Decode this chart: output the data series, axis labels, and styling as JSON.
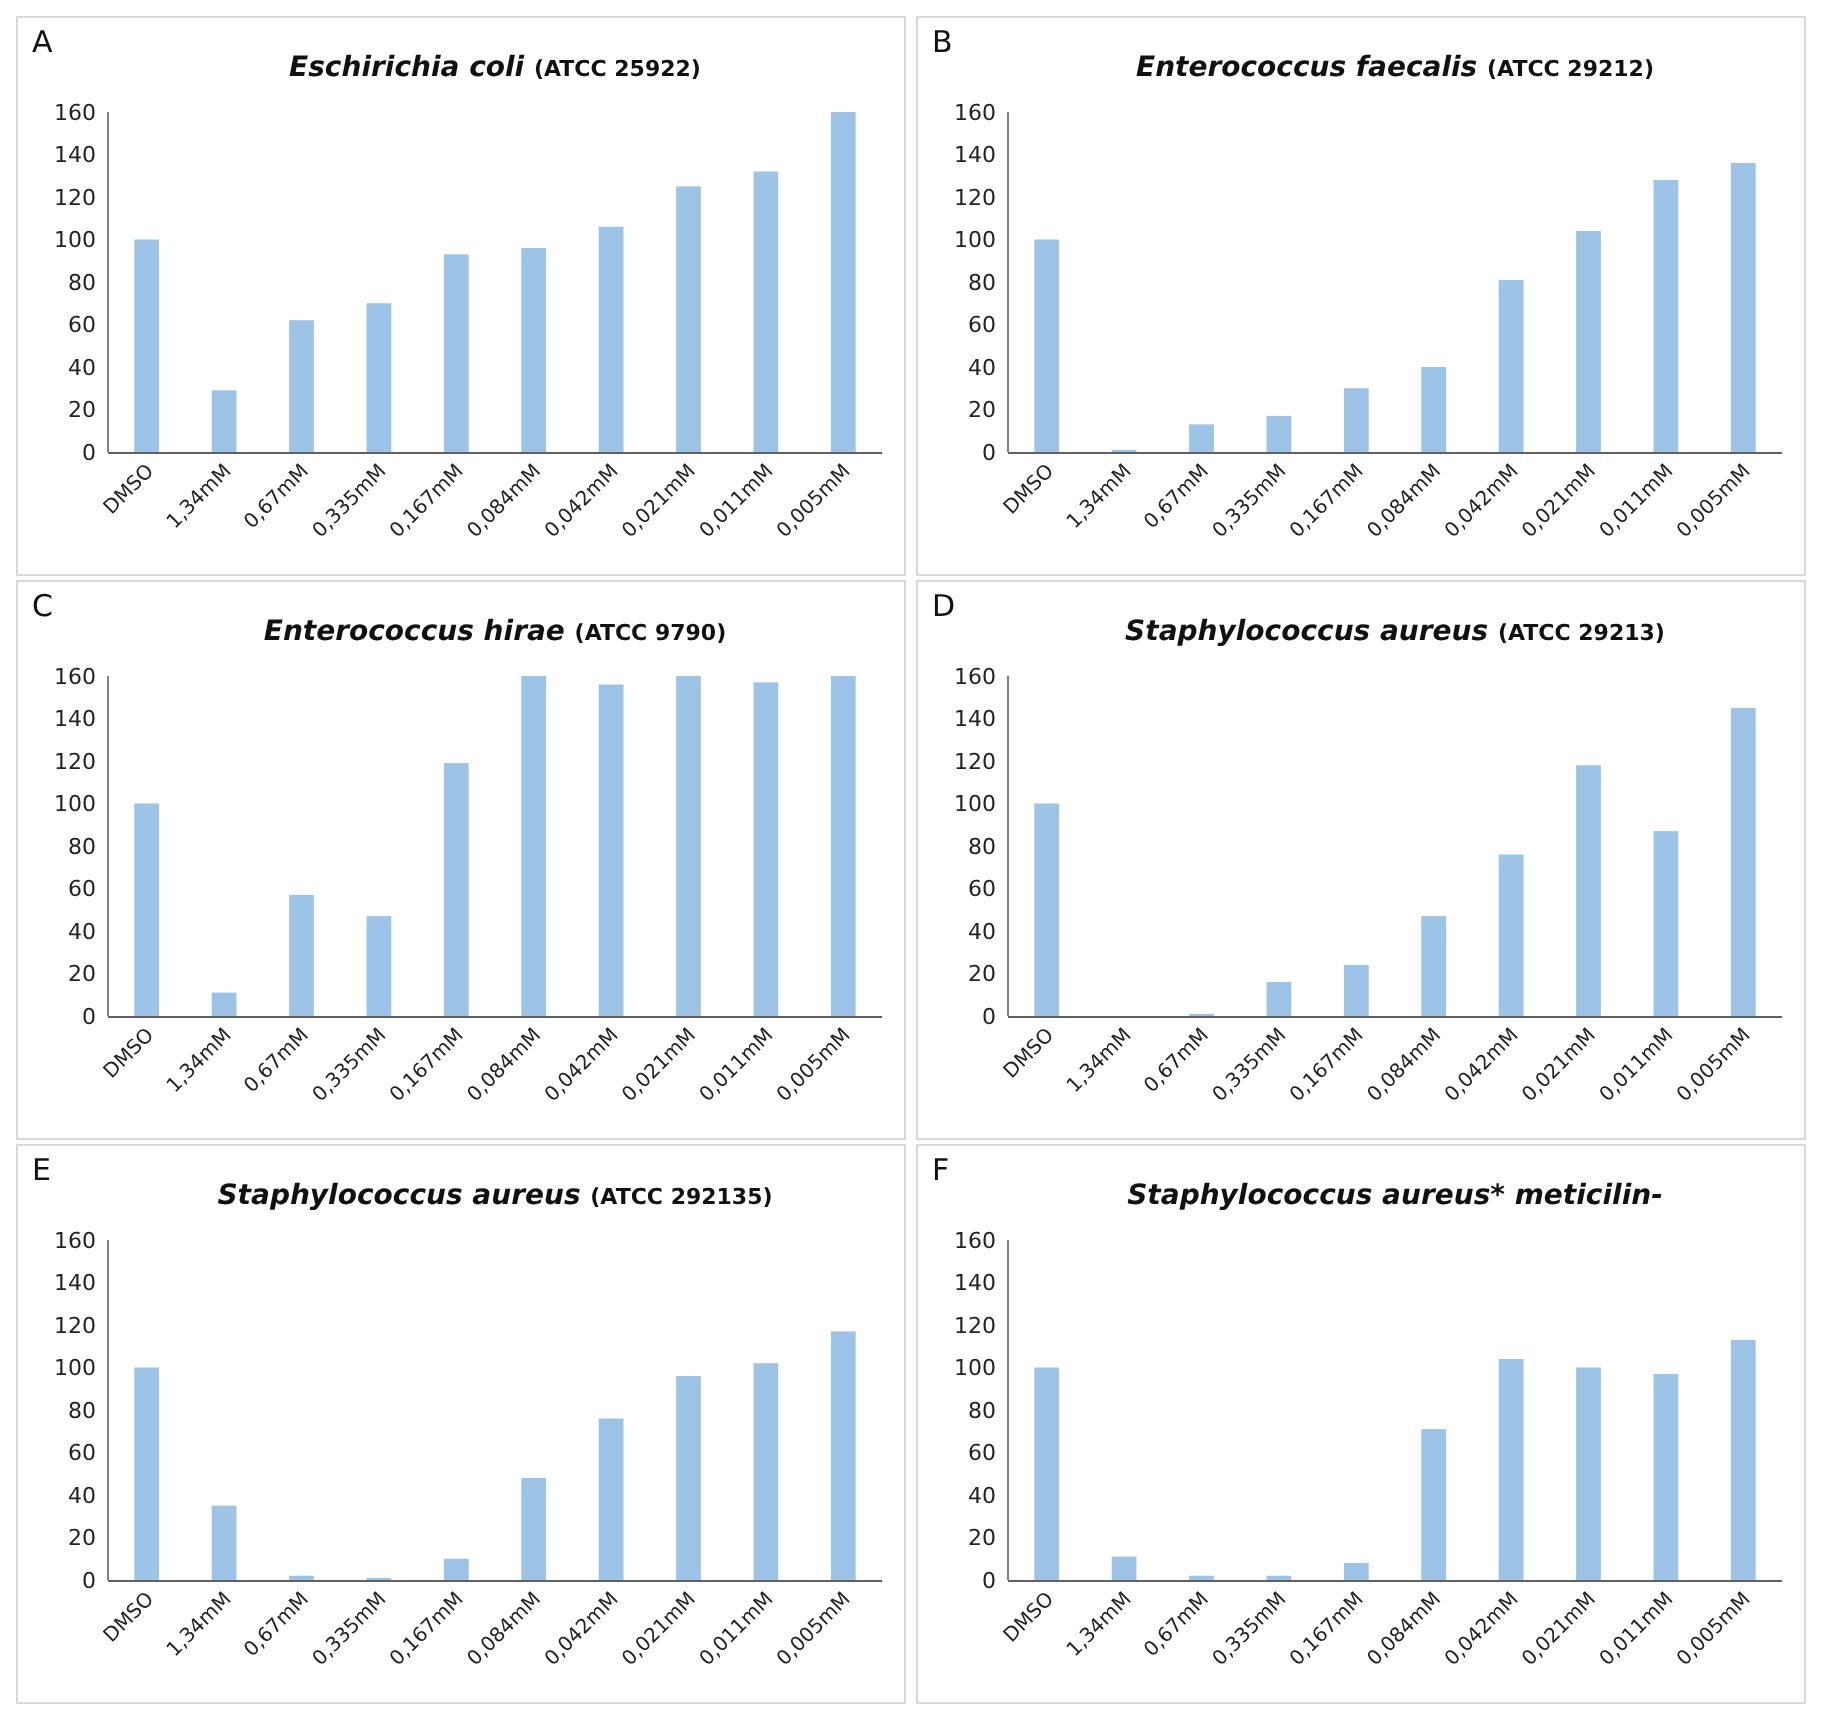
{
  "chart_data": [
    {
      "type": "bar",
      "annotations": [
        "A"
      ],
      "title": "Eschirichia coli (ATCC 25922)",
      "categories": [
        "DMSO",
        "1,34mM",
        "0,67mM",
        "0,335mM",
        "0,167mM",
        "0,084mM",
        "0,042mM",
        "0,021mM",
        "0,011mM",
        "0,005mM"
      ],
      "values": [
        100,
        29,
        62,
        70,
        93,
        96,
        106,
        125,
        132,
        160
      ],
      "color": "#9dc3e6",
      "ylim": [
        0,
        160
      ],
      "yticks": [
        0,
        20,
        40,
        60,
        80,
        100,
        120,
        140,
        160
      ],
      "grid": false
    },
    {
      "type": "bar",
      "annotations": [
        "B"
      ],
      "title": "Enterococcus faecalis (ATCC 29212)",
      "categories": [
        "DMSO",
        "1,34mM",
        "0,67mM",
        "0,335mM",
        "0,167mM",
        "0,084mM",
        "0,042mM",
        "0,021mM",
        "0,011mM",
        "0,005mM"
      ],
      "values": [
        100,
        1,
        13,
        17,
        30,
        40,
        81,
        104,
        128,
        136
      ],
      "color": "#9dc3e6",
      "ylim": [
        0,
        160
      ],
      "yticks": [
        0,
        20,
        40,
        60,
        80,
        100,
        120,
        140,
        160
      ],
      "grid": false
    },
    {
      "type": "bar",
      "annotations": [
        "C"
      ],
      "title": "Enterococcus hirae (ATCC 9790)",
      "categories": [
        "DMSO",
        "1,34mM",
        "0,67mM",
        "0,335mM",
        "0,167mM",
        "0,084mM",
        "0,042mM",
        "0,021mM",
        "0,011mM",
        "0,005mM"
      ],
      "values": [
        100,
        11,
        57,
        47,
        119,
        160,
        156,
        160,
        157,
        160
      ],
      "color": "#9dc3e6",
      "ylim": [
        0,
        160
      ],
      "yticks": [
        0,
        20,
        40,
        60,
        80,
        100,
        120,
        140,
        160
      ],
      "grid": false
    },
    {
      "type": "bar",
      "annotations": [
        "D"
      ],
      "title": "Staphylococcus aureus (ATCC 29213)",
      "categories": [
        "DMSO",
        "1,34mM",
        "0,67mM",
        "0,335mM",
        "0,167mM",
        "0,084mM",
        "0,042mM",
        "0,021mM",
        "0,011mM",
        "0,005mM"
      ],
      "values": [
        100,
        0,
        1,
        16,
        24,
        47,
        76,
        118,
        87,
        145
      ],
      "color": "#9dc3e6",
      "ylim": [
        0,
        160
      ],
      "yticks": [
        0,
        20,
        40,
        60,
        80,
        100,
        120,
        140,
        160
      ],
      "grid": false
    },
    {
      "type": "bar",
      "annotations": [
        "E"
      ],
      "title": "Staphylococcus aureus (ATCC 292135)",
      "categories": [
        "DMSO",
        "1,34mM",
        "0,67mM",
        "0,335mM",
        "0,167mM",
        "0,084mM",
        "0,042mM",
        "0,021mM",
        "0,011mM",
        "0,005mM"
      ],
      "values": [
        100,
        35,
        2,
        1,
        10,
        48,
        76,
        96,
        102,
        117
      ],
      "color": "#9dc3e6",
      "ylim": [
        0,
        160
      ],
      "yticks": [
        0,
        20,
        40,
        60,
        80,
        100,
        120,
        140,
        160
      ],
      "grid": false
    },
    {
      "type": "bar",
      "annotations": [
        "F"
      ],
      "title": "Staphylococcus aureus* meticilin-",
      "categories": [
        "DMSO",
        "1,34mM",
        "0,67mM",
        "0,335mM",
        "0,167mM",
        "0,084mM",
        "0,042mM",
        "0,021mM",
        "0,011mM",
        "0,005mM"
      ],
      "values": [
        100,
        11,
        2,
        2,
        8,
        71,
        104,
        100,
        97,
        113
      ],
      "color": "#9dc3e6",
      "ylim": [
        0,
        160
      ],
      "yticks": [
        0,
        20,
        40,
        60,
        80,
        100,
        120,
        140,
        160
      ],
      "grid": false
    }
  ]
}
